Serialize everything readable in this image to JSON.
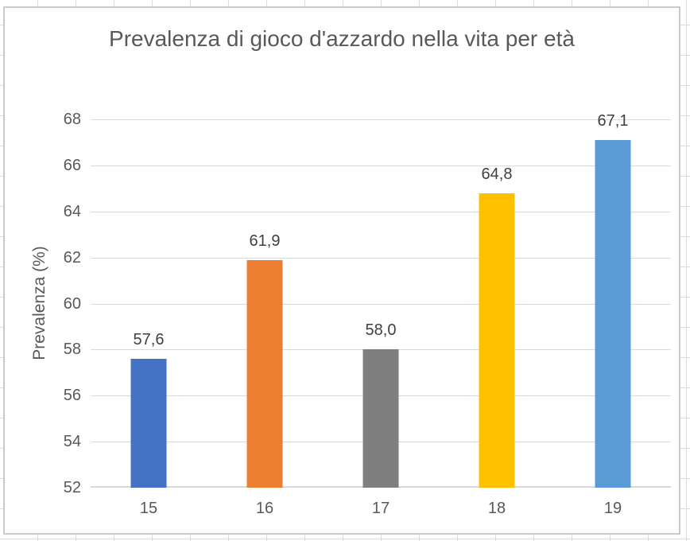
{
  "chart_data": {
    "type": "bar",
    "title": "Prevalenza di gioco d'azzardo nella vita per età",
    "xlabel": "",
    "ylabel": "Prevalenza (%)",
    "categories": [
      "15",
      "16",
      "17",
      "18",
      "19"
    ],
    "values": [
      57.6,
      61.9,
      58.0,
      64.8,
      67.1
    ],
    "value_labels": [
      "57,6",
      "61,9",
      "58,0",
      "64,8",
      "67,1"
    ],
    "bar_colors": [
      "#4472C4",
      "#ED7D31",
      "#7F7F7F",
      "#FFC000",
      "#5B9BD5"
    ],
    "ylim": [
      52,
      68
    ],
    "yticks": [
      52,
      54,
      56,
      58,
      60,
      62,
      64,
      66,
      68
    ],
    "grid": true,
    "legend": false,
    "decimal_separator": ",",
    "gridline_color": "#D9D9D9",
    "axis_text_color": "#595959",
    "title_color": "#595959"
  }
}
